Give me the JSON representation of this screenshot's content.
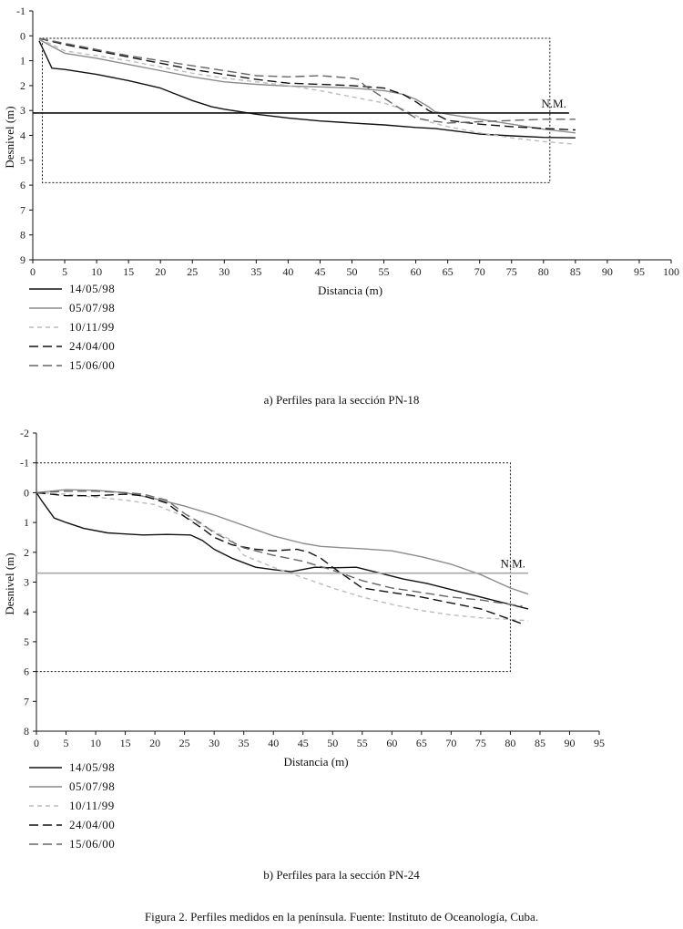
{
  "chart_data": [
    {
      "id": "a",
      "type": "line",
      "caption": "a) Perfiles para la sección PN-18",
      "xlabel": "Distancia (m)",
      "ylabel": "Desnivel (m)",
      "xlim": [
        0,
        100
      ],
      "ylim": [
        -1,
        9
      ],
      "xticks": [
        "0",
        "5",
        "10",
        "15",
        "20",
        "25",
        "30",
        "35",
        "40",
        "45",
        "50",
        "55",
        "60",
        "65",
        "70",
        "75",
        "80",
        "85",
        "90",
        "95",
        "100"
      ],
      "yticks": [
        "-1",
        "0",
        "1",
        "2",
        "3",
        "4",
        "5",
        "6",
        "7",
        "8",
        "9"
      ],
      "reference_line": {
        "label": "N.M.",
        "y": 3.1,
        "x": [
          0,
          84
        ],
        "color": "#111111"
      },
      "highlight_box": {
        "x": [
          1.5,
          81
        ],
        "y": [
          0.1,
          5.9
        ]
      },
      "series": [
        {
          "name": "14/05/98",
          "color": "#111111",
          "dash": "solid",
          "x": [
            1,
            3,
            5,
            10,
            15,
            20,
            22,
            25,
            28,
            30,
            35,
            40,
            45,
            50,
            55,
            60,
            63,
            67,
            70,
            75,
            80,
            85
          ],
          "y": [
            0.2,
            1.3,
            1.35,
            1.55,
            1.8,
            2.1,
            2.3,
            2.6,
            2.85,
            2.95,
            3.15,
            3.3,
            3.42,
            3.5,
            3.58,
            3.68,
            3.72,
            3.85,
            3.95,
            4.02,
            4.08,
            4.1
          ]
        },
        {
          "name": "05/07/98",
          "color": "#8c8c8c",
          "dash": "solid",
          "x": [
            1,
            5,
            10,
            15,
            20,
            25,
            30,
            35,
            40,
            45,
            50,
            55,
            58,
            60,
            62,
            63,
            65,
            70,
            75,
            80,
            85
          ],
          "y": [
            0.15,
            0.7,
            0.9,
            1.15,
            1.4,
            1.65,
            1.85,
            1.95,
            2.02,
            2.05,
            2.1,
            2.2,
            2.35,
            2.55,
            2.85,
            3.05,
            3.15,
            3.35,
            3.55,
            3.75,
            3.9
          ]
        },
        {
          "name": "10/11/99",
          "color": "#bcbcbc",
          "dash": "short",
          "x": [
            1,
            5,
            10,
            15,
            20,
            25,
            30,
            35,
            40,
            45,
            50,
            55,
            58,
            60,
            62,
            65,
            70,
            75,
            80,
            85
          ],
          "y": [
            0.1,
            0.6,
            0.8,
            1.0,
            1.25,
            1.5,
            1.7,
            1.85,
            2.0,
            2.2,
            2.45,
            2.7,
            2.95,
            3.2,
            3.45,
            3.65,
            3.9,
            4.1,
            4.25,
            4.35
          ]
        },
        {
          "name": "24/04/00",
          "color": "#111111",
          "dash": "long",
          "x": [
            1,
            5,
            10,
            15,
            20,
            25,
            30,
            35,
            40,
            45,
            50,
            55,
            58,
            60,
            62,
            65,
            70,
            75,
            80,
            85
          ],
          "y": [
            0.1,
            0.35,
            0.6,
            0.85,
            1.1,
            1.35,
            1.55,
            1.75,
            1.9,
            1.95,
            2.0,
            2.1,
            2.35,
            2.65,
            3.0,
            3.4,
            3.55,
            3.65,
            3.72,
            3.78
          ]
        },
        {
          "name": "15/06/00",
          "color": "#666666",
          "dash": "long",
          "x": [
            1,
            5,
            10,
            15,
            20,
            25,
            30,
            35,
            40,
            45,
            50,
            51,
            52,
            55,
            58,
            60,
            62,
            65,
            70,
            75,
            80,
            85
          ],
          "y": [
            0.1,
            0.3,
            0.55,
            0.8,
            1.0,
            1.2,
            1.4,
            1.6,
            1.65,
            1.6,
            1.7,
            1.75,
            2.0,
            2.5,
            3.0,
            3.3,
            3.4,
            3.5,
            3.45,
            3.4,
            3.35,
            3.35
          ]
        }
      ],
      "legend": [
        "14/05/98",
        "05/07/98",
        "10/11/99",
        "24/04/00",
        "15/06/00"
      ]
    },
    {
      "id": "b",
      "type": "line",
      "caption": "b) Perfiles para la sección PN-24",
      "xlabel": "Distancia (m)",
      "ylabel": "Desnivel (m)",
      "xlim": [
        0,
        95
      ],
      "ylim": [
        -2,
        8
      ],
      "xticks": [
        "0",
        "5",
        "10",
        "15",
        "20",
        "25",
        "30",
        "35",
        "40",
        "45",
        "50",
        "55",
        "60",
        "65",
        "70",
        "75",
        "80",
        "85",
        "90",
        "95"
      ],
      "yticks": [
        "-2",
        "-1",
        "0",
        "1",
        "2",
        "3",
        "4",
        "5",
        "6",
        "7",
        "8"
      ],
      "reference_line": {
        "label": "N.M.",
        "y": 2.7,
        "x": [
          0,
          83
        ],
        "color": "#a8a8a8"
      },
      "highlight_box": {
        "x": [
          0,
          80
        ],
        "y": [
          -1,
          6
        ]
      },
      "series": [
        {
          "name": "14/05/98",
          "color": "#111111",
          "dash": "solid",
          "x": [
            0,
            1,
            3,
            5,
            8,
            12,
            18,
            22,
            26,
            28,
            30,
            33,
            37,
            40,
            43,
            47,
            50,
            54,
            58,
            62,
            66,
            70,
            75,
            80,
            83
          ],
          "y": [
            0.0,
            0.3,
            0.85,
            1.0,
            1.2,
            1.35,
            1.42,
            1.4,
            1.42,
            1.6,
            1.9,
            2.2,
            2.5,
            2.58,
            2.65,
            2.5,
            2.52,
            2.5,
            2.7,
            2.9,
            3.05,
            3.25,
            3.5,
            3.75,
            3.9
          ]
        },
        {
          "name": "05/07/98",
          "color": "#8c8c8c",
          "dash": "solid",
          "x": [
            0,
            5,
            10,
            15,
            20,
            25,
            30,
            35,
            40,
            45,
            48,
            52,
            55,
            60,
            65,
            70,
            75,
            80,
            83
          ],
          "y": [
            0.0,
            -0.1,
            -0.08,
            0.0,
            0.2,
            0.45,
            0.75,
            1.1,
            1.45,
            1.7,
            1.8,
            1.85,
            1.88,
            1.95,
            2.15,
            2.4,
            2.75,
            3.2,
            3.4
          ]
        },
        {
          "name": "10/11/99",
          "color": "#bcbcbc",
          "dash": "short",
          "x": [
            0,
            5,
            10,
            15,
            20,
            25,
            30,
            33,
            35,
            40,
            45,
            50,
            55,
            60,
            65,
            70,
            75,
            80,
            83
          ],
          "y": [
            0.0,
            0.05,
            0.15,
            0.25,
            0.4,
            0.8,
            1.3,
            1.6,
            2.1,
            2.5,
            2.85,
            3.2,
            3.5,
            3.75,
            3.95,
            4.1,
            4.2,
            4.25,
            4.3
          ]
        },
        {
          "name": "24/04/00",
          "color": "#111111",
          "dash": "long",
          "x": [
            0,
            5,
            10,
            15,
            18,
            22,
            25,
            28,
            30,
            33,
            37,
            40,
            44,
            46,
            48,
            50,
            55,
            60,
            65,
            70,
            75,
            80,
            82
          ],
          "y": [
            0.0,
            0.1,
            0.1,
            0.05,
            0.1,
            0.35,
            0.8,
            1.2,
            1.5,
            1.75,
            1.9,
            1.95,
            1.9,
            2.0,
            2.2,
            2.5,
            3.2,
            3.35,
            3.5,
            3.7,
            3.9,
            4.25,
            4.4
          ]
        },
        {
          "name": "15/06/00",
          "color": "#666666",
          "dash": "long",
          "x": [
            0,
            5,
            10,
            15,
            18,
            22,
            25,
            28,
            30,
            35,
            40,
            45,
            50,
            55,
            60,
            65,
            70,
            75,
            80,
            82
          ],
          "y": [
            0.0,
            -0.05,
            -0.05,
            0.0,
            0.05,
            0.25,
            0.7,
            1.05,
            1.35,
            1.85,
            2.1,
            2.3,
            2.6,
            2.95,
            3.2,
            3.35,
            3.5,
            3.6,
            3.75,
            3.8
          ]
        }
      ],
      "legend": [
        "14/05/98",
        "05/07/98",
        "10/11/99",
        "24/04/00",
        "15/06/00"
      ]
    }
  ],
  "figure_caption": "Figura 2. Perfiles medidos en la península. Fuente: Instituto de Oceanología, Cuba."
}
